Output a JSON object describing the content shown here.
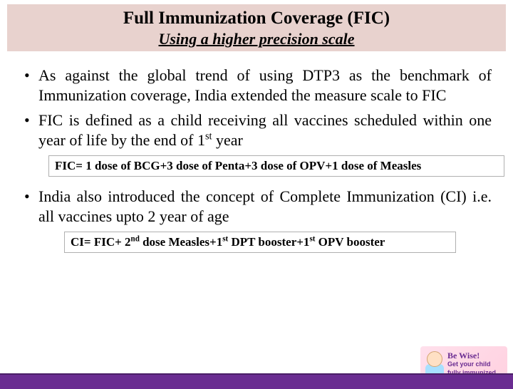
{
  "header": {
    "title": "Full Immunization Coverage (FIC)",
    "subtitle": "Using a higher precision scale",
    "band_color": "#e8d2ce"
  },
  "bullets": {
    "b1": "As against the global trend of using DTP3 as the benchmark of Immunization coverage, India extended the measure scale to FIC",
    "b2_pre": "FIC is defined as a child receiving all vaccines scheduled within one year of life by the end of 1",
    "b2_sup": "st",
    "b2_post": " year",
    "b3": "India also introduced the concept of Complete Immunization (CI) i.e. all vaccines upto 2 year of age"
  },
  "formulas": {
    "fic": "FIC= 1 dose of BCG+3 dose of Penta+3 dose of OPV+1 dose of Measles",
    "ci_pre": "CI= FIC+ 2",
    "ci_s1": "nd",
    "ci_m1": " dose Measles+1",
    "ci_s2": "st",
    "ci_m2": " DPT booster+1",
    "ci_s3": "st",
    "ci_post": " OPV booster"
  },
  "logo": {
    "line1": "Be Wise!",
    "line2a": "Get your child",
    "line2b": "fully immunized"
  },
  "colors": {
    "footer": "#6a2c91",
    "text": "#000000",
    "box_border": "#b0b0b0"
  }
}
